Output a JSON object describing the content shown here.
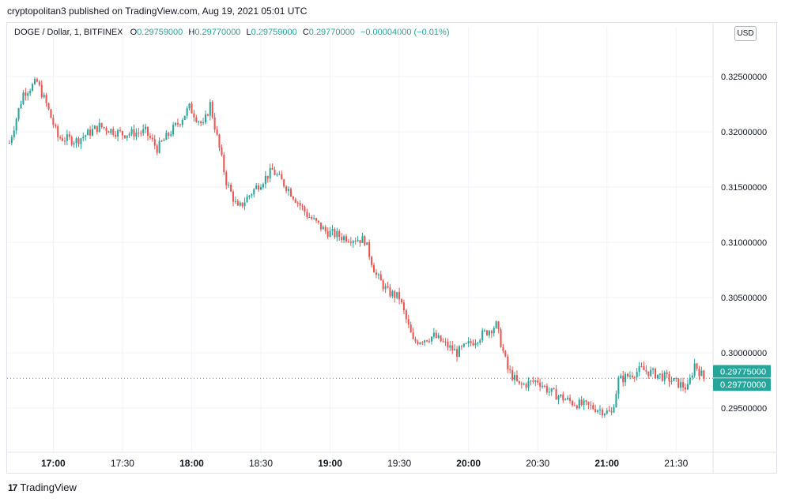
{
  "header": {
    "published_line": "cryptopolitan3 published on TradingView.com, Aug 19, 2021 05:01 UTC"
  },
  "legend": {
    "symbol": "DOGE / Dollar, 1, BITFINEX",
    "o_label": "O",
    "o_value": "0.29759000",
    "h_label": "H",
    "h_value": "0.29770000",
    "l_label": "L",
    "l_value": "0.29759000",
    "c_label": "C",
    "c_value": "0.29770000",
    "change": "−0.00004000 (−0.01%)"
  },
  "currency_button": "USD",
  "footer": {
    "brand": "TradingView",
    "brand_mark": "17"
  },
  "colors": {
    "up": "#26a69a",
    "down": "#ef5350",
    "grid": "#f0f3fa",
    "axis_text": "#131722"
  },
  "chart_data": {
    "type": "candlestick",
    "symbol": "DOGE / Dollar",
    "interval": "1",
    "exchange": "BITFINEX",
    "y_ticks": [
      "0.32500000",
      "0.32000000",
      "0.31500000",
      "0.31000000",
      "0.30500000",
      "0.30000000",
      "0.29500000"
    ],
    "x_ticks": [
      {
        "label": "17:00",
        "bold": true
      },
      {
        "label": "17:30",
        "bold": false
      },
      {
        "label": "18:00",
        "bold": true
      },
      {
        "label": "18:30",
        "bold": false
      },
      {
        "label": "19:00",
        "bold": true
      },
      {
        "label": "19:30",
        "bold": false
      },
      {
        "label": "20:00",
        "bold": true
      },
      {
        "label": "20:30",
        "bold": false
      },
      {
        "label": "21:00",
        "bold": true
      },
      {
        "label": "21:30",
        "bold": false
      }
    ],
    "ylim": [
      0.291,
      0.3285
    ],
    "price_labels": [
      {
        "value": 0.29775,
        "text": "0.29775000"
      },
      {
        "value": 0.2977,
        "text": "0.29770000"
      }
    ],
    "close_anchors": [
      {
        "t": "16:41",
        "price": 0.319
      },
      {
        "t": "16:47",
        "price": 0.3235
      },
      {
        "t": "16:53",
        "price": 0.3245
      },
      {
        "t": "16:57",
        "price": 0.3225
      },
      {
        "t": "17:02",
        "price": 0.3195
      },
      {
        "t": "17:10",
        "price": 0.3192
      },
      {
        "t": "17:20",
        "price": 0.3205
      },
      {
        "t": "17:30",
        "price": 0.3198
      },
      {
        "t": "17:40",
        "price": 0.32
      },
      {
        "t": "17:45",
        "price": 0.3185
      },
      {
        "t": "17:55",
        "price": 0.321
      },
      {
        "t": "17:59",
        "price": 0.3222
      },
      {
        "t": "18:05",
        "price": 0.3205
      },
      {
        "t": "18:08",
        "price": 0.3225
      },
      {
        "t": "18:12",
        "price": 0.3185
      },
      {
        "t": "18:15",
        "price": 0.3155
      },
      {
        "t": "18:20",
        "price": 0.313
      },
      {
        "t": "18:28",
        "price": 0.315
      },
      {
        "t": "18:35",
        "price": 0.3165
      },
      {
        "t": "18:42",
        "price": 0.3148
      },
      {
        "t": "18:50",
        "price": 0.3125
      },
      {
        "t": "18:58",
        "price": 0.311
      },
      {
        "t": "19:05",
        "price": 0.3105
      },
      {
        "t": "19:15",
        "price": 0.3102
      },
      {
        "t": "19:20",
        "price": 0.307
      },
      {
        "t": "19:25",
        "price": 0.3055
      },
      {
        "t": "19:30",
        "price": 0.305
      },
      {
        "t": "19:36",
        "price": 0.301
      },
      {
        "t": "19:45",
        "price": 0.3015
      },
      {
        "t": "19:55",
        "price": 0.3
      },
      {
        "t": "20:05",
        "price": 0.3015
      },
      {
        "t": "20:12",
        "price": 0.3025
      },
      {
        "t": "20:17",
        "price": 0.2985
      },
      {
        "t": "20:22",
        "price": 0.297
      },
      {
        "t": "20:30",
        "price": 0.2975
      },
      {
        "t": "20:35",
        "price": 0.2965
      },
      {
        "t": "20:45",
        "price": 0.2955
      },
      {
        "t": "20:55",
        "price": 0.295
      },
      {
        "t": "21:02",
        "price": 0.2945
      },
      {
        "t": "21:05",
        "price": 0.2975
      },
      {
        "t": "21:15",
        "price": 0.2985
      },
      {
        "t": "21:25",
        "price": 0.2978
      },
      {
        "t": "21:35",
        "price": 0.2968
      },
      {
        "t": "21:38",
        "price": 0.299
      },
      {
        "t": "21:42",
        "price": 0.2977
      }
    ],
    "grid": true,
    "last_price_line": "dotted"
  }
}
